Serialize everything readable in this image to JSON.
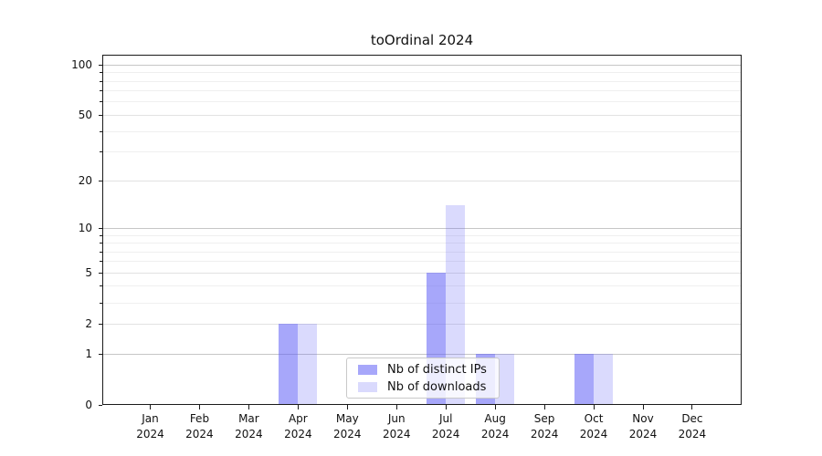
{
  "title": "toOrdinal 2024",
  "legend": {
    "items": [
      {
        "label": "Nb of distinct IPs"
      },
      {
        "label": "Nb of downloads"
      }
    ]
  },
  "colors": {
    "distinct_ips_bar": "rgba(95,95,245,0.55)",
    "downloads_bar": "rgba(95,95,245,0.23)",
    "grid_major": "#c6c6c6",
    "grid_mid": "#e2e2e2",
    "grid_minor": "#efefef",
    "spine": "#1a1a1a"
  },
  "x_axis": {
    "months": [
      "Jan",
      "Feb",
      "Mar",
      "Apr",
      "May",
      "Jun",
      "Jul",
      "Aug",
      "Sep",
      "Oct",
      "Nov",
      "Dec"
    ],
    "year": "2024"
  },
  "y_axis": {
    "tick_labels": [
      0,
      1,
      2,
      5,
      10,
      20,
      50,
      100
    ],
    "major_gridlines": [
      1,
      10,
      100
    ],
    "mid_gridlines": [
      2,
      5,
      20,
      50
    ],
    "minor_gridlines": [
      3,
      4,
      6,
      7,
      8,
      9,
      30,
      40,
      60,
      70,
      80,
      90
    ],
    "scale": "log1p"
  },
  "chart_data": {
    "type": "bar",
    "title": "toOrdinal 2024",
    "categories": [
      "Jan 2024",
      "Feb 2024",
      "Mar 2024",
      "Apr 2024",
      "May 2024",
      "Jun 2024",
      "Jul 2024",
      "Aug 2024",
      "Sep 2024",
      "Oct 2024",
      "Nov 2024",
      "Dec 2024"
    ],
    "series": [
      {
        "name": "Nb of distinct IPs",
        "values": [
          0,
          0,
          0,
          2,
          0,
          0,
          5,
          1,
          0,
          1,
          0,
          0
        ]
      },
      {
        "name": "Nb of downloads",
        "values": [
          0,
          0,
          0,
          2,
          0,
          0,
          14,
          1,
          0,
          1,
          0,
          0
        ]
      }
    ],
    "xlabel": "",
    "ylabel": "",
    "ylim": [
      0,
      116
    ],
    "yscale": "log1p (axis labeled 0,1,2,5,10,20,50,100)",
    "grid": "horizontal",
    "legend_position": "inside lower-center"
  }
}
